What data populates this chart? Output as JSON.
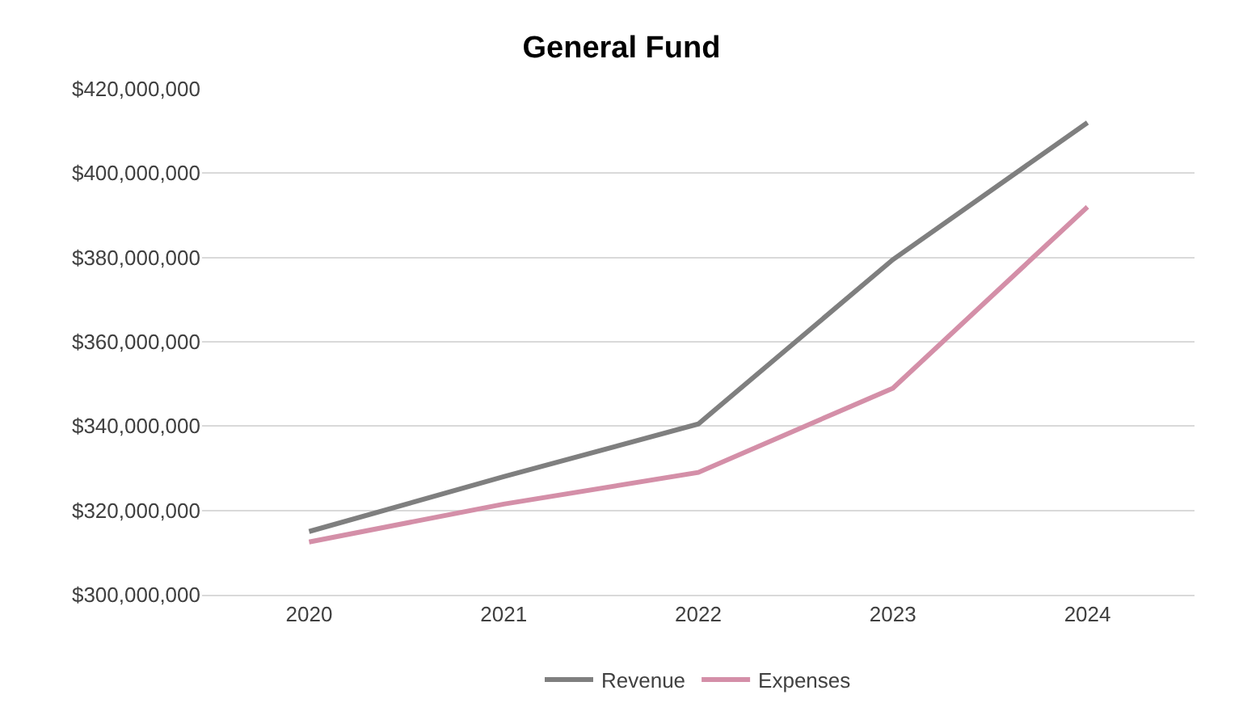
{
  "chart_data": {
    "type": "line",
    "title": "General Fund",
    "categories": [
      "2020",
      "2021",
      "2022",
      "2023",
      "2024"
    ],
    "series": [
      {
        "name": "Revenue",
        "color": "#7f7f7f",
        "values": [
          315000000,
          328000000,
          340500000,
          379500000,
          412000000
        ]
      },
      {
        "name": "Expenses",
        "color": "#d48fa8",
        "values": [
          312500000,
          321500000,
          329000000,
          349000000,
          392000000
        ]
      }
    ],
    "ylim": [
      300000000,
      420000000
    ],
    "yticks": [
      {
        "value": 300000000,
        "label": "$300,000,000"
      },
      {
        "value": 320000000,
        "label": "$320,000,000"
      },
      {
        "value": 340000000,
        "label": "$340,000,000"
      },
      {
        "value": 360000000,
        "label": "$360,000,000"
      },
      {
        "value": 380000000,
        "label": "$380,000,000"
      },
      {
        "value": 400000000,
        "label": "$400,000,000"
      },
      {
        "value": 420000000,
        "label": "$420,000,000"
      }
    ],
    "grid": "y",
    "legend": "bottom",
    "marker": "none",
    "line_style": "solid"
  }
}
